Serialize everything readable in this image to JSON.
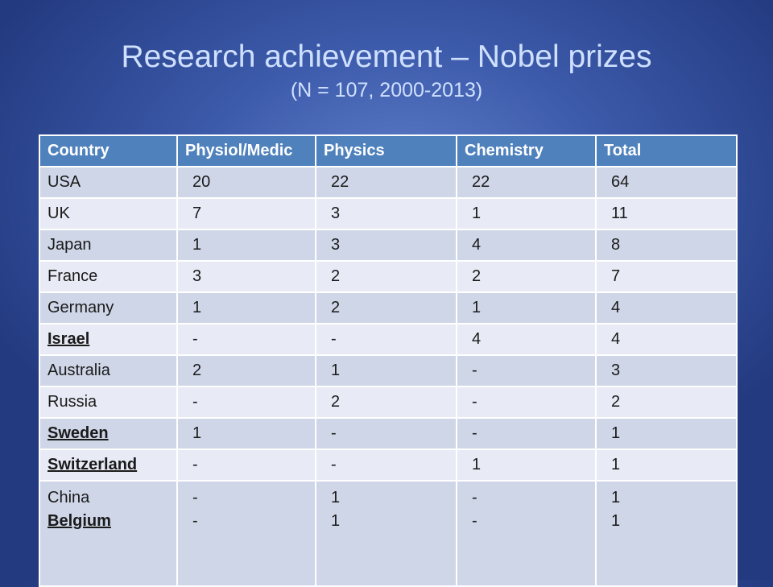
{
  "slide": {
    "title": "Research achievement – Nobel prizes",
    "subtitle": "(N = 107, 2000-2013)"
  },
  "table": {
    "headers": [
      "Country",
      "Physiol/Medic",
      "Physics",
      "Chemistry",
      "Total"
    ],
    "rows": [
      {
        "country": "USA",
        "bold": false,
        "physiol_medic": "20",
        "physics": "22",
        "chemistry": "22",
        "total": "64"
      },
      {
        "country": "UK",
        "bold": false,
        "physiol_medic": "7",
        "physics": "3",
        "chemistry": "1",
        "total": "11"
      },
      {
        "country": "Japan",
        "bold": false,
        "physiol_medic": "1",
        "physics": "3",
        "chemistry": "4",
        "total": "8"
      },
      {
        "country": "France",
        "bold": false,
        "physiol_medic": "3",
        "physics": "2",
        "chemistry": "2",
        "total": "7"
      },
      {
        "country": "Germany",
        "bold": false,
        "physiol_medic": "1",
        "physics": "2",
        "chemistry": "1",
        "total": "4"
      },
      {
        "country": "Israel",
        "bold": true,
        "physiol_medic": "-",
        "physics": "-",
        "chemistry": "4",
        "total": "4"
      },
      {
        "country": "Australia",
        "bold": false,
        "physiol_medic": "2",
        "physics": "1",
        "chemistry": "-",
        "total": "3"
      },
      {
        "country": "Russia",
        "bold": false,
        "physiol_medic": "-",
        "physics": "2",
        "chemistry": "-",
        "total": "2"
      },
      {
        "country": "Sweden",
        "bold": true,
        "physiol_medic": "1",
        "physics": "-",
        "chemistry": "-",
        "total": "1"
      },
      {
        "country": "Switzerland",
        "bold": true,
        "physiol_medic": "-",
        "physics": "-",
        "chemistry": "1",
        "total": "1"
      }
    ],
    "last_row": {
      "countries": [
        {
          "country": "China",
          "bold": false
        },
        {
          "country": "Belgium",
          "bold": true
        }
      ],
      "physiol_medic": [
        "-",
        "-"
      ],
      "physics": [
        "1",
        "1"
      ],
      "chemistry": [
        "-",
        "-"
      ],
      "total": [
        "1",
        "1"
      ]
    }
  },
  "colors": {
    "header_bg": "#4f81bd",
    "row_odd": "#cfd6e8",
    "row_even": "#e8ebf5",
    "title_text": "#cfe0ff"
  }
}
